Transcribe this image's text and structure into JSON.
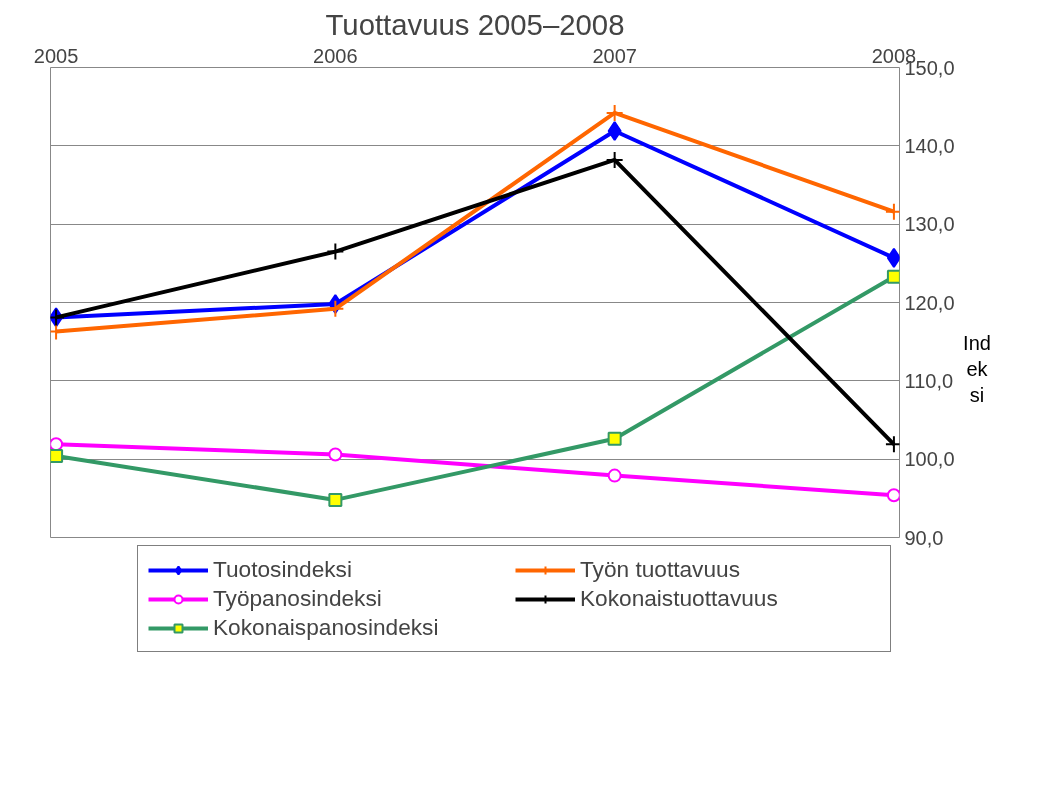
{
  "chart_data": {
    "type": "line",
    "title": "Tuottavuus 2005–2008",
    "ylabel": "Indeksi",
    "categories": [
      "2005",
      "2006",
      "2007",
      "2008"
    ],
    "ylim": [
      90,
      150
    ],
    "yticks": [
      {
        "value": 90,
        "label": "90,0"
      },
      {
        "value": 100,
        "label": "100,0"
      },
      {
        "value": 110,
        "label": "110,0"
      },
      {
        "value": 120,
        "label": "120,0"
      },
      {
        "value": 130,
        "label": "130,0"
      },
      {
        "value": 140,
        "label": "140,0"
      },
      {
        "value": 150,
        "label": "150,0"
      }
    ],
    "grid": "y",
    "legend": "bottom",
    "series": [
      {
        "name": "Tuotosindeksi",
        "color": "#0000ff",
        "marker": "diamond",
        "values": [
          118.1,
          119.8,
          141.9,
          125.7
        ]
      },
      {
        "name": "Työpanosindeksi",
        "color": "#ff00ff",
        "marker": "circle",
        "values": [
          101.9,
          100.6,
          97.9,
          95.4
        ]
      },
      {
        "name": "Kokonaispanosindeksi",
        "color": "#339966",
        "marker": "square",
        "values": [
          100.4,
          94.8,
          102.6,
          123.3
        ]
      },
      {
        "name": "Työn tuottavuus",
        "color": "#ff6600",
        "marker": "cross",
        "values": [
          116.3,
          119.2,
          144.2,
          131.6
        ]
      },
      {
        "name": "Kokonaistuottavuus",
        "color": "#000000",
        "marker": "cross",
        "values": [
          118.1,
          126.5,
          138.2,
          101.9
        ]
      }
    ]
  }
}
